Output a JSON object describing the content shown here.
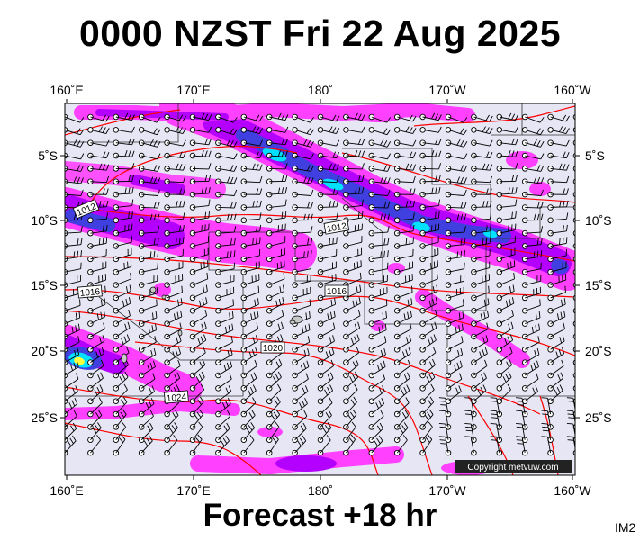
{
  "title": "0000 NZST Fri 22 Aug 2025",
  "footer": "Forecast +18 hr",
  "corner_label": "IM2",
  "copyright": "Copyright metvuw.com",
  "colors": {
    "ocean": "#e6e6f5",
    "rain_light": "#ff40ff",
    "rain_mid": "#b400ff",
    "rain_heavy": "#4040e0",
    "rain_extreme": "#00e0ff",
    "isobar": "#ff0000",
    "barb": "#000000"
  },
  "axes": {
    "top_lon_labels": [
      "160˚E",
      "170˚E",
      "180˚",
      "170˚W",
      "160˚W"
    ],
    "bottom_lon_labels": [
      "160˚E",
      "170˚E",
      "180˚",
      "170˚W",
      "160˚W"
    ],
    "left_lat_labels": [
      "5˚S",
      "10˚S",
      "15˚S",
      "20˚S",
      "25˚S"
    ],
    "right_lat_labels": [
      "5˚S",
      "10˚S",
      "15˚S",
      "20˚S",
      "25˚S"
    ]
  },
  "isobar_labels": [
    {
      "text": "1012",
      "icon": "isobar-label"
    },
    {
      "text": "1012",
      "icon": "isobar-label"
    },
    {
      "text": "1016",
      "icon": "isobar-label"
    },
    {
      "text": "1016",
      "icon": "isobar-label"
    },
    {
      "text": "1020",
      "icon": "isobar-label"
    },
    {
      "text": "1024",
      "icon": "isobar-label"
    }
  ]
}
